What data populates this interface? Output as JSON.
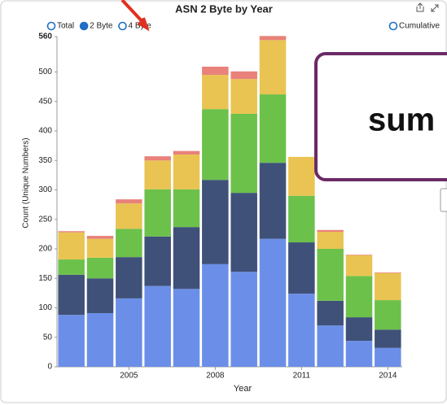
{
  "chart_data": {
    "type": "stacked_bar",
    "title": "ASN 2 Byte by Year",
    "options": [
      {
        "label": "Total",
        "selected": false
      },
      {
        "label": "2 Byte",
        "selected": true
      },
      {
        "label": "4 Byte",
        "selected": false
      }
    ],
    "toggle": {
      "label": "Cumulative",
      "selected": false
    },
    "y_label": "Count (Unique Numbers)",
    "x_label": "Year",
    "annotation": "sum",
    "x": [
      2003,
      2004,
      2005,
      2006,
      2007,
      2008,
      2009,
      2010,
      2011,
      2012,
      2013,
      2014
    ],
    "xlim": [
      2002.5,
      2014.5
    ],
    "xticks": [
      2005,
      2008,
      2011,
      2014
    ],
    "ylim": [
      0,
      560
    ],
    "yticks": [
      0,
      50,
      100,
      150,
      200,
      250,
      300,
      350,
      400,
      450,
      500,
      560
    ],
    "series": [
      {
        "color": "#6b8fe8",
        "values": [
          88,
          91,
          116,
          137,
          132,
          174,
          161,
          217,
          124,
          70,
          44,
          32
        ]
      },
      {
        "color": "#3f5178",
        "values": [
          68,
          59,
          70,
          84,
          105,
          143,
          134,
          129,
          87,
          42,
          40,
          31
        ]
      },
      {
        "color": "#6cc14b",
        "values": [
          26,
          35,
          48,
          80,
          64,
          120,
          134,
          116,
          79,
          88,
          70,
          50
        ]
      },
      {
        "color": "#e9c452",
        "values": [
          46,
          32,
          43,
          49,
          59,
          58,
          59,
          92,
          66,
          29,
          35,
          46
        ]
      },
      {
        "color": "#e8827a",
        "values": [
          2,
          5,
          7,
          7,
          6,
          14,
          13,
          7,
          0,
          3,
          1,
          1
        ]
      }
    ]
  }
}
